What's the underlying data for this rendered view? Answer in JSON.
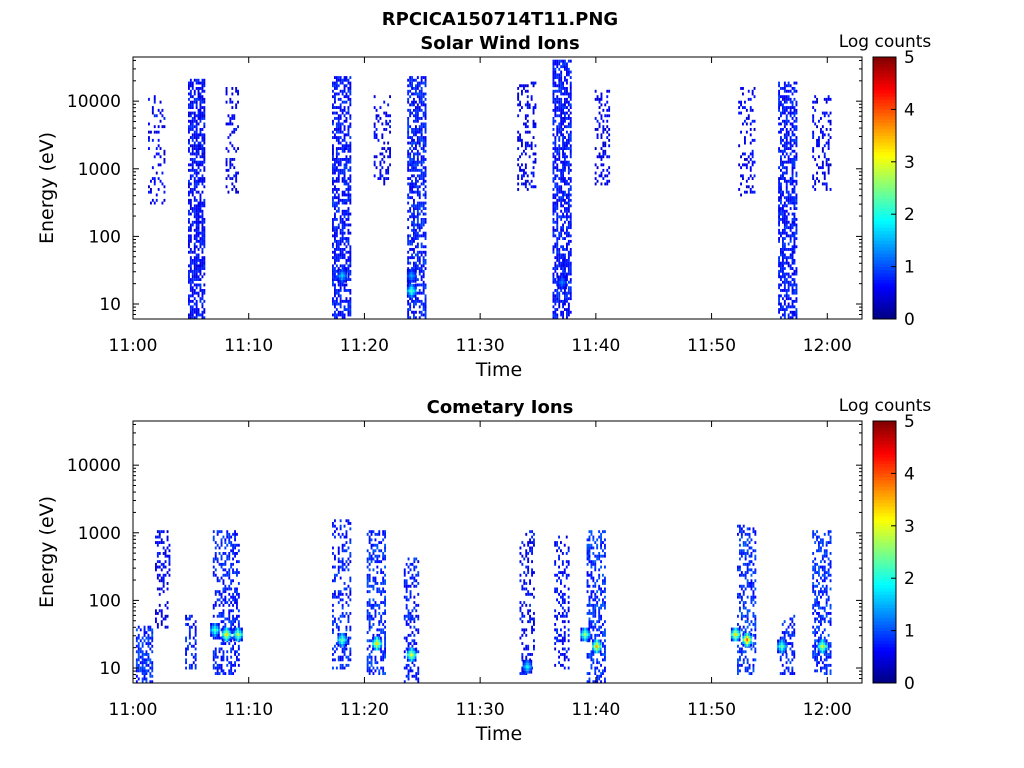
{
  "figure_title": "RPCICA150714T11.PNG",
  "chart_data": [
    {
      "type": "heatmap",
      "title": "Solar Wind Ions",
      "xlabel": "Time",
      "ylabel": "Energy (eV)",
      "x_ticks": [
        "11:00",
        "11:10",
        "11:20",
        "11:30",
        "11:40",
        "11:50",
        "12:00"
      ],
      "x_range": [
        "11:00",
        "12:03"
      ],
      "y_ticks": [
        "10",
        "100",
        "1000",
        "10000"
      ],
      "y_scale": "log",
      "y_range": [
        6,
        45000
      ],
      "colorbar": {
        "label": "Log counts",
        "ticks": [
          "0",
          "1",
          "2",
          "3",
          "4",
          "5"
        ],
        "range": [
          0,
          5
        ],
        "colormap": "jet"
      },
      "bursts": [
        {
          "center": "11:02",
          "width_min": 1.4,
          "e_lo": 300,
          "e_hi": 15000,
          "density": 0.18,
          "level": 0.3
        },
        {
          "center": "11:05.5",
          "width_min": 1.5,
          "e_lo": 6,
          "e_hi": 20000,
          "density": 0.6,
          "level": 0.4
        },
        {
          "center": "11:08.5",
          "width_min": 1.0,
          "e_lo": 400,
          "e_hi": 15000,
          "density": 0.25,
          "level": 0.3
        },
        {
          "center": "11:18",
          "width_min": 1.6,
          "e_lo": 6,
          "e_hi": 22000,
          "density": 0.6,
          "level": 0.45
        },
        {
          "center": "11:21.5",
          "width_min": 1.4,
          "e_lo": 600,
          "e_hi": 12000,
          "density": 0.3,
          "level": 0.3
        },
        {
          "center": "11:24.5",
          "width_min": 1.6,
          "e_lo": 6,
          "e_hi": 22000,
          "density": 0.62,
          "level": 0.5
        },
        {
          "center": "11:34",
          "width_min": 1.6,
          "e_lo": 500,
          "e_hi": 18000,
          "density": 0.3,
          "level": 0.3
        },
        {
          "center": "11:37",
          "width_min": 1.5,
          "e_lo": 6,
          "e_hi": 40000,
          "density": 0.65,
          "level": 0.45
        },
        {
          "center": "11:40.5",
          "width_min": 1.2,
          "e_lo": 600,
          "e_hi": 14000,
          "density": 0.3,
          "level": 0.3
        },
        {
          "center": "11:53",
          "width_min": 1.4,
          "e_lo": 400,
          "e_hi": 15000,
          "density": 0.25,
          "level": 0.3
        },
        {
          "center": "11:56.5",
          "width_min": 1.5,
          "e_lo": 6,
          "e_hi": 18000,
          "density": 0.6,
          "level": 0.45
        },
        {
          "center": "11:59.5",
          "width_min": 1.6,
          "e_lo": 500,
          "e_hi": 12000,
          "density": 0.3,
          "level": 0.3
        }
      ],
      "hotspots": [
        {
          "time": "11:18",
          "energy": 25,
          "level": 1.4
        },
        {
          "time": "11:24",
          "energy": 15,
          "level": 2.0
        },
        {
          "time": "11:24",
          "energy": 25,
          "level": 1.2
        },
        {
          "time": "11:37",
          "energy": 20,
          "level": 1.0
        }
      ]
    },
    {
      "type": "heatmap",
      "title": "Cometary Ions",
      "xlabel": "Time",
      "ylabel": "Energy (eV)",
      "x_ticks": [
        "11:00",
        "11:10",
        "11:20",
        "11:30",
        "11:40",
        "11:50",
        "12:00"
      ],
      "x_range": [
        "11:00",
        "12:03"
      ],
      "y_ticks": [
        "10",
        "100",
        "1000",
        "10000"
      ],
      "y_scale": "log",
      "y_range": [
        6,
        45000
      ],
      "colorbar": {
        "label": "Log counts",
        "ticks": [
          "0",
          "1",
          "2",
          "3",
          "4",
          "5"
        ],
        "range": [
          0,
          5
        ],
        "colormap": "jet"
      },
      "bursts": [
        {
          "center": "11:01",
          "width_min": 1.5,
          "e_lo": 6,
          "e_hi": 40,
          "density": 0.55,
          "level": 0.6
        },
        {
          "center": "11:02.5",
          "width_min": 1.2,
          "e_lo": 40,
          "e_hi": 1000,
          "density": 0.3,
          "level": 0.3
        },
        {
          "center": "11:05",
          "width_min": 1.0,
          "e_lo": 10,
          "e_hi": 60,
          "density": 0.4,
          "level": 0.5
        },
        {
          "center": "11:08",
          "width_min": 2.2,
          "e_lo": 8,
          "e_hi": 1000,
          "density": 0.4,
          "level": 0.5
        },
        {
          "center": "11:18",
          "width_min": 1.6,
          "e_lo": 10,
          "e_hi": 1500,
          "density": 0.35,
          "level": 0.5
        },
        {
          "center": "11:21",
          "width_min": 1.6,
          "e_lo": 8,
          "e_hi": 1000,
          "density": 0.45,
          "level": 0.6
        },
        {
          "center": "11:24",
          "width_min": 1.2,
          "e_lo": 6,
          "e_hi": 400,
          "density": 0.35,
          "level": 0.5
        },
        {
          "center": "11:34",
          "width_min": 1.2,
          "e_lo": 8,
          "e_hi": 1000,
          "density": 0.3,
          "level": 0.4
        },
        {
          "center": "11:37",
          "width_min": 1.2,
          "e_lo": 10,
          "e_hi": 900,
          "density": 0.3,
          "level": 0.4
        },
        {
          "center": "11:40",
          "width_min": 1.6,
          "e_lo": 6,
          "e_hi": 1000,
          "density": 0.45,
          "level": 0.6
        },
        {
          "center": "11:53",
          "width_min": 1.6,
          "e_lo": 8,
          "e_hi": 1200,
          "density": 0.4,
          "level": 0.6
        },
        {
          "center": "11:56.5",
          "width_min": 1.2,
          "e_lo": 8,
          "e_hi": 60,
          "density": 0.4,
          "level": 0.5
        },
        {
          "center": "11:59.5",
          "width_min": 1.6,
          "e_lo": 8,
          "e_hi": 1000,
          "density": 0.45,
          "level": 0.6
        }
      ],
      "hotspots": [
        {
          "time": "11:08",
          "energy": 30,
          "level": 3.0
        },
        {
          "time": "11:09",
          "energy": 30,
          "level": 2.6
        },
        {
          "time": "11:07",
          "energy": 35,
          "level": 2.0
        },
        {
          "time": "11:18",
          "energy": 25,
          "level": 2.2
        },
        {
          "time": "11:21",
          "energy": 22,
          "level": 3.0
        },
        {
          "time": "11:24",
          "energy": 15,
          "level": 2.8
        },
        {
          "time": "11:34",
          "energy": 10,
          "level": 1.6
        },
        {
          "time": "11:40",
          "energy": 20,
          "level": 3.2
        },
        {
          "time": "11:39",
          "energy": 30,
          "level": 2.4
        },
        {
          "time": "11:53",
          "energy": 25,
          "level": 3.6
        },
        {
          "time": "11:52",
          "energy": 30,
          "level": 3.0
        },
        {
          "time": "11:56",
          "energy": 20,
          "level": 2.2
        },
        {
          "time": "11:59.5",
          "energy": 20,
          "level": 2.8
        }
      ]
    }
  ]
}
